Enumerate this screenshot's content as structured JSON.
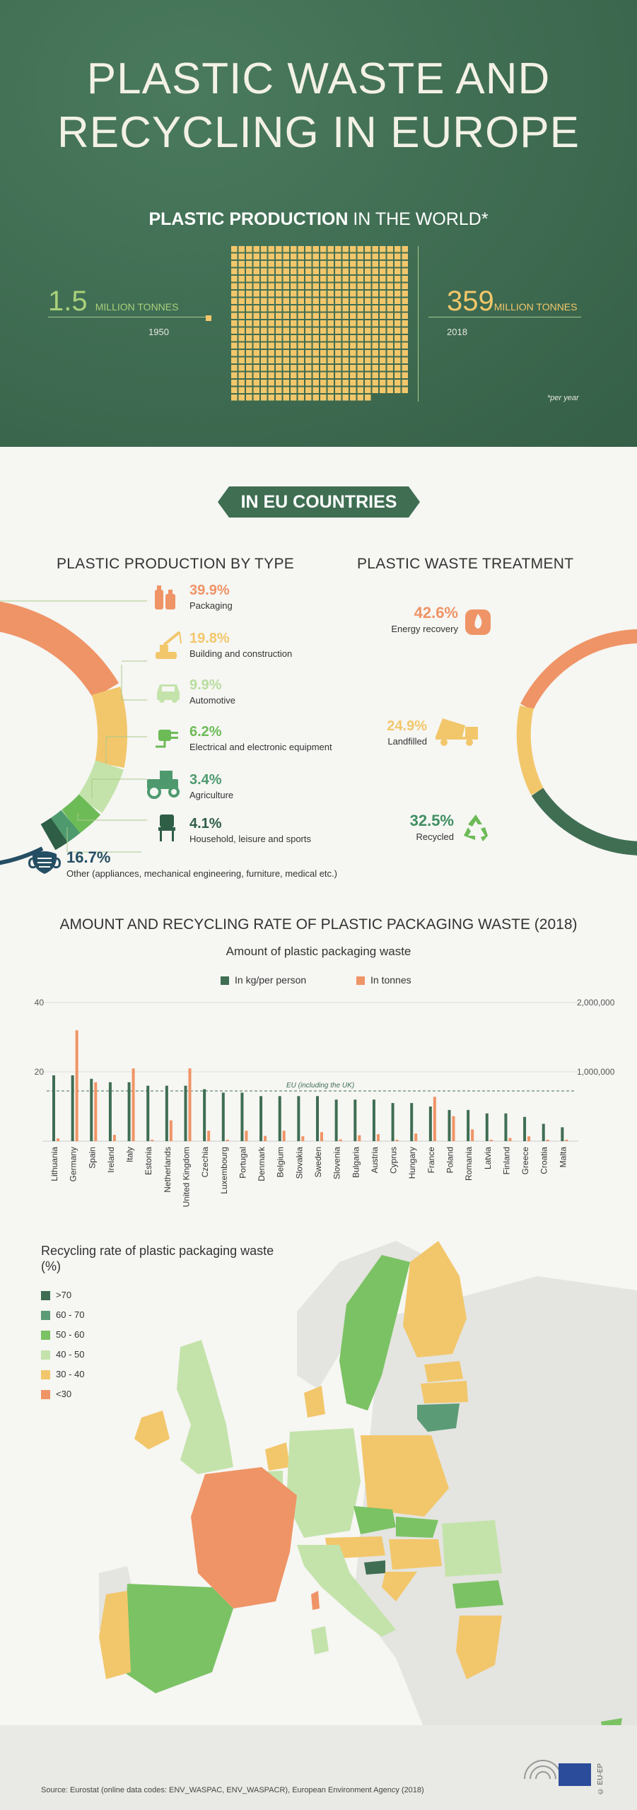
{
  "hero": {
    "title_line1": "PLASTIC WASTE AND",
    "title_line2": "RECYCLING IN EUROPE",
    "production_title_bold": "PLASTIC PRODUCTION",
    "production_title_rest": " IN THE WORLD*",
    "left_value": "1.5",
    "left_unit": "MILLION TONNES",
    "left_year": "1950",
    "right_value": "359",
    "right_unit": "MILLION TONNES",
    "right_year": "2018",
    "footnote": "*per year",
    "colors": {
      "background": "#3f6e53",
      "left_accent": "#a9d17a",
      "right_accent": "#f2c76b"
    }
  },
  "eu_badge": "IN EU COUNTRIES",
  "production_by_type": {
    "heading": "PLASTIC PRODUCTION BY TYPE",
    "items": [
      {
        "pct": "39.9%",
        "label": "Packaging",
        "color": "#ef9466",
        "icon": "bottles-icon"
      },
      {
        "pct": "19.8%",
        "label": "Building and construction",
        "color": "#f2c76b",
        "icon": "crane-icon"
      },
      {
        "pct": "9.9%",
        "label": "Automotive",
        "color": "#b9dea0",
        "icon": "car-icon"
      },
      {
        "pct": "6.2%",
        "label": "Electrical and electronic equipment",
        "color": "#6dbb57",
        "icon": "plug-icon"
      },
      {
        "pct": "3.4%",
        "label": "Agriculture",
        "color": "#4e9a6e",
        "icon": "tractor-icon"
      },
      {
        "pct": "4.1%",
        "label": "Household, leisure and sports",
        "color": "#2f5e46",
        "icon": "chair-icon"
      },
      {
        "pct": "16.7%",
        "label": "Other (appliances, mechanical engineering, furniture, medical etc.)",
        "color": "#244e63",
        "icon": "mask-icon"
      }
    ]
  },
  "waste_treatment": {
    "heading": "PLASTIC WASTE TREATMENT",
    "items": [
      {
        "pct": "42.6%",
        "label": "Energy recovery",
        "color": "#ef9466",
        "icon": "flame-icon"
      },
      {
        "pct": "24.9%",
        "label": "Landfilled",
        "color": "#f2c76b",
        "icon": "dump-truck-icon"
      },
      {
        "pct": "32.5%",
        "label": "Recycled",
        "color": "#3f6e53",
        "icon": "recycle-icon"
      }
    ]
  },
  "packaging_chart": {
    "heading_bold": "AMOUNT AND RECYCLING RATE OF PLASTIC PACKAGING WASTE",
    "heading_rest": " (2018)",
    "subtitle": "Amount of plastic packaging waste",
    "legend_kg": "In kg/per person",
    "legend_tonnes": "In tonnes",
    "left_ticks": [
      "40",
      "20"
    ],
    "right_ticks": [
      "2,000,000",
      "1,000,000"
    ],
    "eu_label": "EU (including the UK)"
  },
  "chart_data": {
    "type": "bar",
    "title": "Amount of plastic packaging waste",
    "categories": [
      "Lithuania",
      "Germany",
      "Spain",
      "Ireland",
      "Italy",
      "Estonia",
      "Netherlands",
      "United Kingdom",
      "Czechia",
      "Luxembourg",
      "Portugal",
      "Denmark",
      "Belgium",
      "Slovakia",
      "Sweden",
      "Slovenia",
      "Bulgaria",
      "Austria",
      "Cyprus",
      "Hungary",
      "France",
      "Poland",
      "Romania",
      "Latvia",
      "Finland",
      "Greece",
      "Croatia",
      "Malta"
    ],
    "series": [
      {
        "name": "In kg/per person",
        "axis": "left",
        "color": "#3f6e53",
        "values": [
          19,
          19,
          18,
          17,
          17,
          16,
          16,
          16,
          15,
          14,
          14,
          13,
          13,
          13,
          13,
          12,
          12,
          12,
          11,
          11,
          10,
          9,
          9,
          8,
          8,
          7,
          5,
          4
        ]
      },
      {
        "name": "In tonnes",
        "axis": "right",
        "color": "#ef9466",
        "values": [
          40000,
          1600000,
          850000,
          90000,
          1050000,
          20000,
          300000,
          1050000,
          150000,
          10000,
          150000,
          75000,
          150000,
          70000,
          130000,
          25000,
          85000,
          100000,
          10000,
          110000,
          640000,
          360000,
          170000,
          15000,
          45000,
          70000,
          20000,
          2000
        ]
      }
    ],
    "reference_line": {
      "label": "EU (including the UK)",
      "value": 14.5,
      "axis": "left"
    },
    "ylim_left": [
      0,
      40
    ],
    "ylim_right": [
      0,
      2000000
    ],
    "left_ticks": [
      20,
      40
    ],
    "right_ticks": [
      1000000,
      2000000
    ]
  },
  "map": {
    "title": "Recycling rate of plastic packaging waste",
    "title_unit": "(%)",
    "legend": [
      {
        "label": ">70",
        "color": "#3f6e53"
      },
      {
        "label": "60 - 70",
        "color": "#5b9c77"
      },
      {
        "label": "50 - 60",
        "color": "#7bc264"
      },
      {
        "label": "40 - 50",
        "color": "#c4e3ab"
      },
      {
        "label": "30 - 40",
        "color": "#f2c76b"
      },
      {
        "label": "<30",
        "color": "#ef9466"
      }
    ]
  },
  "footer": {
    "source": "Source: Eurostat (online data codes: ENV_WASPAC, ENV_WASPACR), European Environment Agency (2018)",
    "brand": "© EU-EP"
  }
}
